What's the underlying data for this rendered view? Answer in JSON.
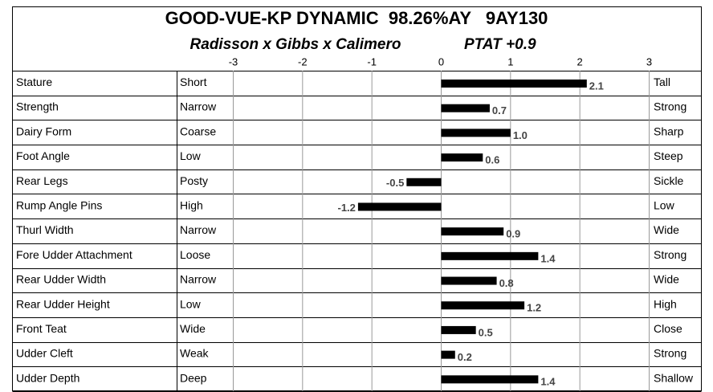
{
  "chart_data": {
    "type": "bar",
    "title": "GOOD-VUE-KP DYNAMIC  98.26%AY   9AY130",
    "subtitle": "Radisson x Gibbs x Calimero",
    "annotation": "PTAT +0.9",
    "categories": [
      "Stature",
      "Strength",
      "Dairy Form",
      "Foot Angle",
      "Rear Legs",
      "Rump Angle Pins",
      "Thurl Width",
      "Fore Udder Attachment",
      "Rear Udder Width",
      "Rear Udder Height",
      "Front Teat",
      "Udder Cleft",
      "Udder Depth"
    ],
    "low_labels": [
      "Short",
      "Narrow",
      "Coarse",
      "Low",
      "Posty",
      "High",
      "Narrow",
      "Loose",
      "Narrow",
      "Low",
      "Wide",
      "Weak",
      "Deep"
    ],
    "high_labels": [
      "Tall",
      "Strong",
      "Sharp",
      "Steep",
      "Sickle",
      "Low",
      "Wide",
      "Strong",
      "Wide",
      "High",
      "Close",
      "Strong",
      "Shallow"
    ],
    "values": [
      2.1,
      0.7,
      1.0,
      0.6,
      -0.5,
      -1.2,
      0.9,
      1.4,
      0.8,
      1.2,
      0.5,
      0.2,
      1.4
    ],
    "value_labels": [
      "2.1",
      "0.7",
      "1.0",
      "0.6",
      "-0.5",
      "-1.2",
      "0.9",
      "1.4",
      "0.8",
      "1.2",
      "0.5",
      "0.2",
      "1.4"
    ],
    "color": "#000000",
    "xlim": [
      -3,
      3
    ],
    "xticks": [
      -3,
      -2,
      -1,
      0,
      1,
      2,
      3
    ],
    "grid": true
  }
}
